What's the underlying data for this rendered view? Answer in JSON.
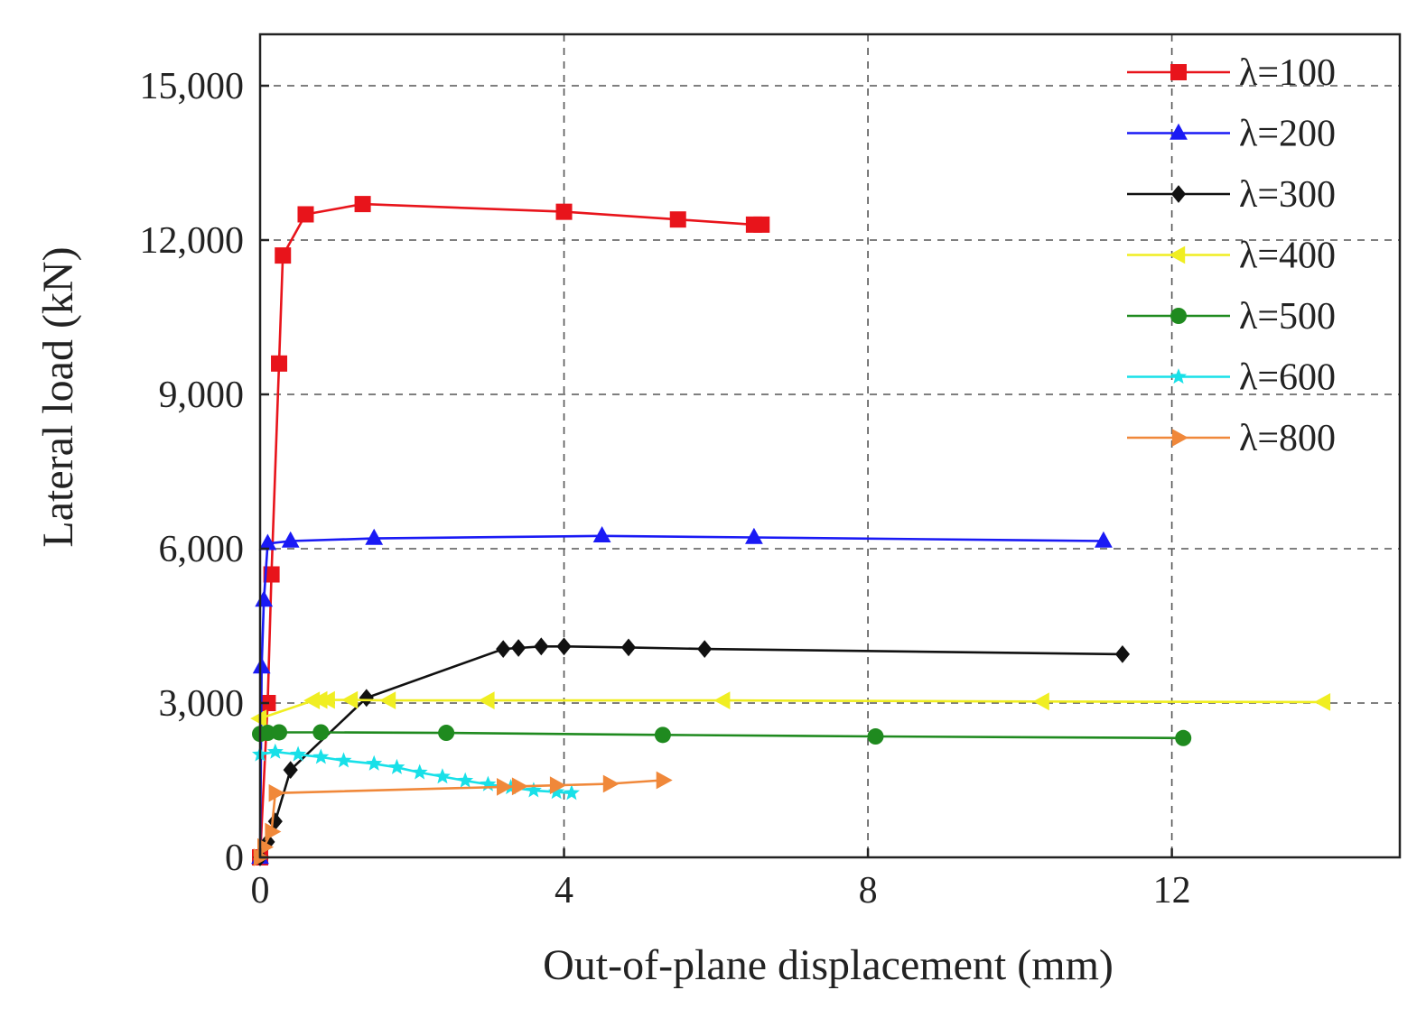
{
  "chart_data": {
    "type": "line",
    "title": "",
    "xlabel": "Out-of-plane displacement (mm)",
    "ylabel": "Lateral load (kN)",
    "xlim": [
      0,
      15
    ],
    "ylim": [
      0,
      16000
    ],
    "xticks": [
      0,
      4,
      8,
      12
    ],
    "xtick_labels": [
      "0",
      "4",
      "8",
      "12"
    ],
    "yticks": [
      0,
      3000,
      6000,
      9000,
      12000,
      15000
    ],
    "ytick_labels": [
      "0",
      "3,000",
      "6,000",
      "9,000",
      "12,000",
      "15,000"
    ],
    "grid": true,
    "legend_position": "top-right",
    "series": [
      {
        "name": "λ=100",
        "color": "#e8141b",
        "marker": "square",
        "points": [
          [
            0,
            0
          ],
          [
            0.1,
            3000
          ],
          [
            0.15,
            5500
          ],
          [
            0.25,
            9600
          ],
          [
            0.3,
            11700
          ],
          [
            0.6,
            12500
          ],
          [
            1.35,
            12700
          ],
          [
            4.0,
            12550
          ],
          [
            5.5,
            12400
          ],
          [
            6.5,
            12300
          ],
          [
            6.6,
            12300
          ]
        ]
      },
      {
        "name": "λ=200",
        "color": "#1a1af5",
        "marker": "triangle-up",
        "points": [
          [
            0,
            0
          ],
          [
            0.02,
            3700
          ],
          [
            0.05,
            5000
          ],
          [
            0.1,
            6100
          ],
          [
            0.4,
            6150
          ],
          [
            1.5,
            6200
          ],
          [
            4.5,
            6250
          ],
          [
            6.5,
            6220
          ],
          [
            11.1,
            6150
          ]
        ]
      },
      {
        "name": "λ=300",
        "color": "#111111",
        "marker": "diamond",
        "points": [
          [
            0,
            0
          ],
          [
            0.1,
            300
          ],
          [
            0.2,
            700
          ],
          [
            0.4,
            1700
          ],
          [
            1.4,
            3100
          ],
          [
            3.2,
            4050
          ],
          [
            3.4,
            4070
          ],
          [
            3.7,
            4100
          ],
          [
            4.0,
            4100
          ],
          [
            4.85,
            4080
          ],
          [
            5.85,
            4050
          ],
          [
            11.35,
            3950
          ]
        ]
      },
      {
        "name": "λ=400",
        "color": "#f0ee22",
        "marker": "triangle-left",
        "points": [
          [
            0,
            2700
          ],
          [
            0.7,
            3050
          ],
          [
            0.8,
            3060
          ],
          [
            0.9,
            3060
          ],
          [
            1.2,
            3060
          ],
          [
            1.7,
            3050
          ],
          [
            3.0,
            3050
          ],
          [
            6.1,
            3050
          ],
          [
            10.3,
            3030
          ],
          [
            14.0,
            3020
          ]
        ]
      },
      {
        "name": "λ=500",
        "color": "#1f8a1f",
        "marker": "circle",
        "points": [
          [
            0,
            2400
          ],
          [
            0.1,
            2420
          ],
          [
            0.25,
            2430
          ],
          [
            0.8,
            2430
          ],
          [
            2.45,
            2420
          ],
          [
            5.3,
            2380
          ],
          [
            8.1,
            2350
          ],
          [
            12.15,
            2320
          ]
        ]
      },
      {
        "name": "λ=600",
        "color": "#18e0e8",
        "marker": "star",
        "points": [
          [
            0,
            2000
          ],
          [
            0.2,
            2050
          ],
          [
            0.5,
            2000
          ],
          [
            0.8,
            1950
          ],
          [
            1.1,
            1880
          ],
          [
            1.5,
            1820
          ],
          [
            1.8,
            1750
          ],
          [
            2.1,
            1650
          ],
          [
            2.4,
            1570
          ],
          [
            2.7,
            1490
          ],
          [
            3.0,
            1420
          ],
          [
            3.3,
            1360
          ],
          [
            3.6,
            1300
          ],
          [
            3.9,
            1270
          ],
          [
            4.1,
            1250
          ]
        ]
      },
      {
        "name": "λ=800",
        "color": "#f0883a",
        "marker": "triangle-right",
        "points": [
          [
            0,
            0
          ],
          [
            0.05,
            200
          ],
          [
            0.15,
            500
          ],
          [
            0.2,
            1250
          ],
          [
            3.2,
            1370
          ],
          [
            3.4,
            1380
          ],
          [
            3.9,
            1400
          ],
          [
            4.6,
            1430
          ],
          [
            5.3,
            1500
          ]
        ]
      }
    ]
  }
}
